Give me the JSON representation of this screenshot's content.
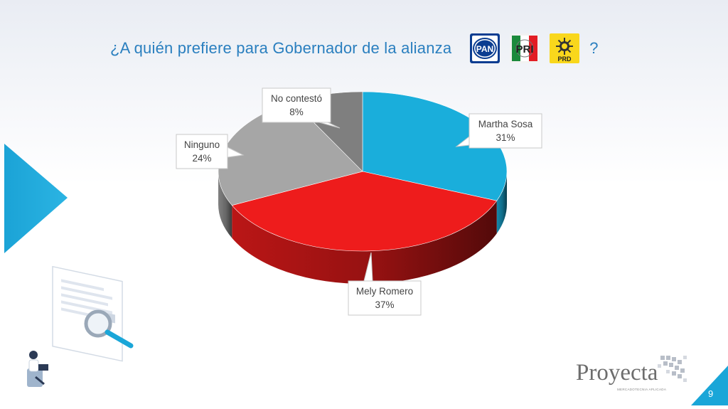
{
  "slide": {
    "title": "¿A quién prefiere para Gobernador de la alianza",
    "title_suffix": "?",
    "party_logos": [
      {
        "name": "PAN",
        "label": "PAN",
        "icon": "pan-logo-icon"
      },
      {
        "name": "PRI",
        "label": "PRI",
        "icon": "pri-logo-icon"
      },
      {
        "name": "PRD",
        "label": "PRD",
        "icon": "prd-logo-icon"
      }
    ],
    "brand": "Proyecta",
    "brand_tagline": "MERCADOTECNIA APLICADA",
    "page_number": "9",
    "accent_color": "#1aa6d8"
  },
  "chart_data": {
    "type": "pie",
    "title": "¿A quién prefiere para Gobernador de la alianza ?",
    "slices": [
      {
        "label": "Martha Sosa",
        "value": 31,
        "value_label": "31%",
        "color": "#1aaedb"
      },
      {
        "label": "Mely Romero",
        "value": 37,
        "value_label": "37%",
        "color": "#ee1c1c"
      },
      {
        "label": "Ninguno",
        "value": 24,
        "value_label": "24%",
        "color": "#a6a6a6"
      },
      {
        "label": "No contestó",
        "value": 8,
        "value_label": "8%",
        "color": "#7f7f7f"
      }
    ],
    "style": "3d-tilted",
    "legend": "none",
    "data_labels": "callouts"
  }
}
